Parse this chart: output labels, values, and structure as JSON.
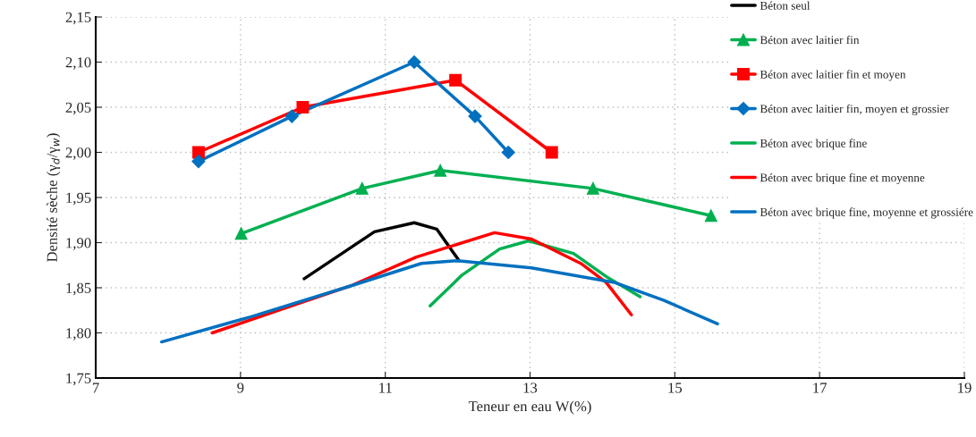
{
  "chart_data": {
    "type": "line",
    "xlabel": "Teneur en eau W(%)",
    "ylabel": "Densité sèche (γ$_{d}$/γ$_{w}$)",
    "xlim": [
      7,
      19
    ],
    "xticks": [
      7,
      9,
      11,
      13,
      15,
      17,
      19
    ],
    "ylim": [
      1.75,
      2.15
    ],
    "yticks": [
      {
        "value": 1.75,
        "label": "1,75"
      },
      {
        "value": 1.8,
        "label": "1,80"
      },
      {
        "value": 1.85,
        "label": "1,85"
      },
      {
        "value": 1.9,
        "label": "1,90"
      },
      {
        "value": 1.95,
        "label": "1,95"
      },
      {
        "value": 2.0,
        "label": "2,00"
      },
      {
        "value": 2.05,
        "label": "2,05"
      },
      {
        "value": 2.1,
        "label": "2,10"
      },
      {
        "value": 2.15,
        "label": "2,15"
      }
    ],
    "grid": true,
    "legend": "top right",
    "line_style": "solid",
    "series": [
      {
        "name": "Béton seul",
        "color": "#000000",
        "marker": "none",
        "x": [
          9.88,
          10.85,
          11.4,
          11.71,
          12.02
        ],
        "values": [
          1.86,
          1.912,
          1.922,
          1.915,
          1.88
        ]
      },
      {
        "name": "Béton avec laitier fin",
        "color": "#00b050",
        "marker": "triangle",
        "x": [
          9.01,
          10.68,
          11.76,
          13.87,
          15.5
        ],
        "values": [
          1.91,
          1.96,
          1.98,
          1.96,
          1.93
        ]
      },
      {
        "name": "Béton avec laitier fin et moyen",
        "color": "#ff0000",
        "marker": "square",
        "x": [
          8.42,
          9.86,
          11.97,
          13.3
        ],
        "values": [
          2.0,
          2.05,
          2.08,
          2.0
        ]
      },
      {
        "name": "Béton avec laitier fin, moyen et grossier",
        "color": "#0070c0",
        "marker": "diamond",
        "x": [
          8.42,
          9.71,
          11.4,
          12.24,
          12.7
        ],
        "values": [
          1.99,
          2.04,
          2.1,
          2.04,
          2.0
        ]
      },
      {
        "name": "Béton avec brique fine",
        "color": "#00b050",
        "marker": "none",
        "x": [
          11.62,
          12.06,
          12.58,
          12.98,
          13.6,
          14.06,
          14.52
        ],
        "values": [
          1.83,
          1.864,
          1.893,
          1.902,
          1.888,
          1.862,
          1.84
        ]
      },
      {
        "name": "Béton avec brique fine et moyenne",
        "color": "#ff0000",
        "marker": "none",
        "x": [
          8.61,
          9.71,
          10.52,
          11.43,
          12.51,
          13.02,
          13.7,
          14.05,
          14.4
        ],
        "values": [
          1.8,
          1.83,
          1.852,
          1.884,
          1.911,
          1.904,
          1.877,
          1.856,
          1.82
        ]
      },
      {
        "name": "Béton avec brique fine, moyenne et grossiére",
        "color": "#0070c0",
        "marker": "none",
        "x": [
          7.91,
          9.15,
          10.52,
          11.5,
          12.0,
          13.02,
          14.16,
          14.85,
          15.59
        ],
        "values": [
          1.79,
          1.818,
          1.852,
          1.877,
          1.88,
          1.872,
          1.856,
          1.836,
          1.81
        ]
      }
    ]
  }
}
